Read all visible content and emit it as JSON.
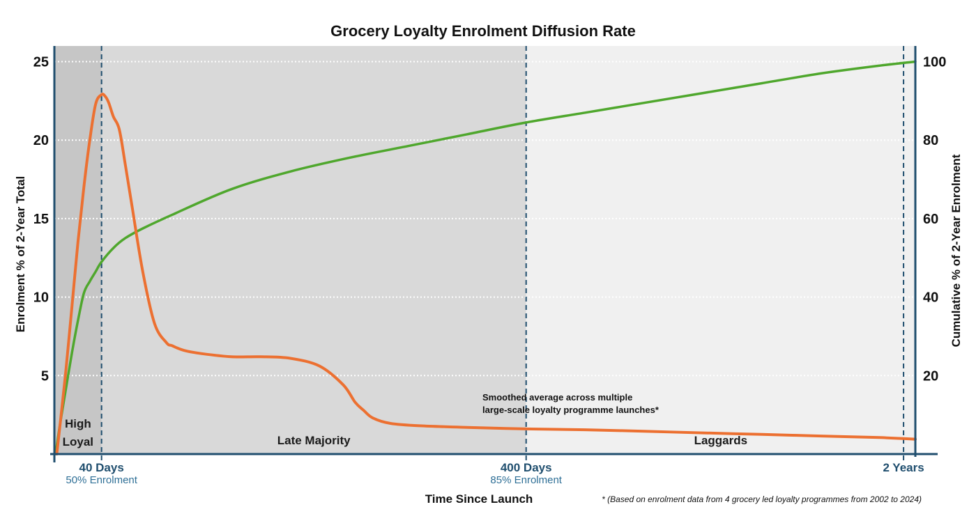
{
  "chart_data": {
    "type": "line",
    "title": "Grocery Loyalty Enrolment Diffusion Rate",
    "xlabel": "Time Since Launch",
    "ylabel_left": "Enrolment % of 2-Year Total",
    "ylabel_right": "Cumulative % of 2-Year Enrolment",
    "x_unit": "days since launch",
    "xlim": [
      0,
      730
    ],
    "ylim_left": [
      0,
      26
    ],
    "ylim_right": [
      0,
      104
    ],
    "yticks_left": [
      5,
      10,
      15,
      20,
      25
    ],
    "yticks_right": [
      20,
      40,
      60,
      80,
      100
    ],
    "grid": "horizontal dotted",
    "markers": [
      {
        "x": 40,
        "label": "40 Days",
        "sub": "50% Enrolment"
      },
      {
        "x": 400,
        "label": "400 Days",
        "sub": "85% Enrolment"
      },
      {
        "x": 720,
        "label": "2 Years",
        "sub": ""
      }
    ],
    "regions": [
      {
        "name": "High Loyal",
        "lines": [
          "High",
          "Loyal"
        ],
        "x_start": 0,
        "x_end": 40,
        "color": "#c6c6c6"
      },
      {
        "name": "Late Majority",
        "lines": [
          "Late Majority"
        ],
        "x_start": 40,
        "x_end": 400,
        "color": "#d9d9d9"
      },
      {
        "name": "Laggards",
        "lines": [
          "Laggards"
        ],
        "x_start": 400,
        "x_end": 730,
        "color": "#f0f0f0"
      }
    ],
    "series": [
      {
        "name": "Enrolment % of 2-Year Total",
        "axis": "left",
        "color": "#ec7031",
        "x": [
          2,
          5,
          10,
          15,
          20,
          25,
          30,
          35,
          40,
          43,
          46,
          50,
          55,
          60,
          66,
          75,
          85,
          95,
          100,
          110,
          125,
          150,
          175,
          200,
          225,
          245,
          255,
          262,
          270,
          285,
          310,
          350,
          400,
          450,
          500,
          550,
          600,
          650,
          700,
          730
        ],
        "values": [
          0,
          2.0,
          5.5,
          9.5,
          13.5,
          17.0,
          20.0,
          22.3,
          22.9,
          22.8,
          22.4,
          21.5,
          20.7,
          18.5,
          15.7,
          11.6,
          8.3,
          7.1,
          6.9,
          6.6,
          6.4,
          6.2,
          6.2,
          6.1,
          5.6,
          4.4,
          3.3,
          2.8,
          2.3,
          1.95,
          1.8,
          1.7,
          1.6,
          1.55,
          1.45,
          1.35,
          1.25,
          1.15,
          1.05,
          0.95
        ]
      },
      {
        "name": "Cumulative % of 2-Year Enrolment",
        "axis": "right",
        "color": "#4fa72d",
        "x": [
          1,
          5,
          10,
          15,
          20,
          25,
          30,
          35,
          40,
          50,
          60,
          75,
          100,
          150,
          200,
          250,
          300,
          350,
          400,
          450,
          500,
          550,
          600,
          650,
          700,
          730
        ],
        "values": [
          0,
          8,
          17,
          26,
          34,
          41,
          44,
          46.5,
          49,
          52.5,
          55,
          57.5,
          61,
          67.5,
          72,
          75.5,
          78.5,
          81.5,
          84.5,
          87,
          89.5,
          92,
          94.5,
          97,
          99,
          100
        ]
      }
    ],
    "annotation": [
      "Smoothed average across multiple",
      "large-scale loyalty programme launches*"
    ],
    "footnote": "* (Based on enrolment data from 4 grocery led loyalty programmes from 2002 to 2024)"
  }
}
